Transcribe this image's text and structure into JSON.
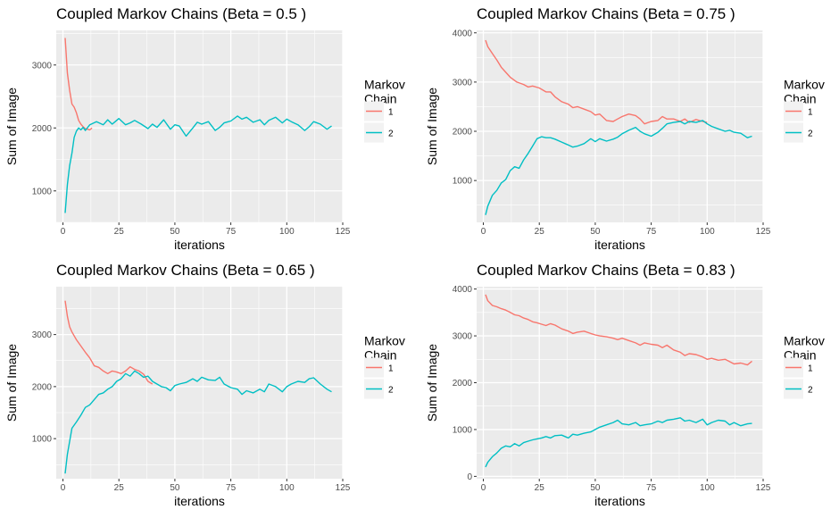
{
  "colors": {
    "series_1": "#F8766D",
    "series_2": "#00BFC4",
    "panel_bg": "#EBEBEB",
    "grid": "#FFFFFF"
  },
  "chart_data": [
    {
      "type": "line",
      "title": "Coupled Markov Chains (Beta = 0.5 )",
      "xlabel": "iterations",
      "ylabel": "Sum of Image",
      "xlim": [
        -3,
        125
      ],
      "ylim": [
        500,
        3550
      ],
      "xticks": [
        0,
        25,
        50,
        75,
        100,
        125
      ],
      "yticks": [
        1000,
        2000,
        3000
      ],
      "grid": true,
      "legend": {
        "title": [
          "Markov",
          "Chain"
        ],
        "placement": "right",
        "entries": [
          "1",
          "2"
        ]
      },
      "series": [
        {
          "name": "1",
          "x": [
            1,
            2,
            3,
            4,
            5,
            6,
            7,
            8,
            9,
            10,
            11,
            12,
            13
          ],
          "y": [
            3430,
            2870,
            2600,
            2380,
            2330,
            2240,
            2120,
            2060,
            2020,
            1990,
            1980,
            1970,
            2000
          ]
        },
        {
          "name": "2",
          "x": [
            1,
            2,
            3,
            4,
            5,
            6,
            7,
            8,
            9,
            10,
            12,
            15,
            18,
            20,
            22,
            25,
            28,
            30,
            32,
            35,
            38,
            40,
            42,
            45,
            48,
            50,
            52,
            55,
            58,
            60,
            62,
            65,
            68,
            70,
            72,
            75,
            78,
            80,
            82,
            85,
            88,
            90,
            92,
            95,
            98,
            100,
            102,
            105,
            108,
            110,
            112,
            115,
            118,
            120
          ],
          "y": [
            650,
            1100,
            1400,
            1600,
            1850,
            1950,
            2000,
            1970,
            2010,
            1960,
            2050,
            2100,
            2050,
            2130,
            2060,
            2150,
            2050,
            2080,
            2120,
            2060,
            1990,
            2060,
            2010,
            2130,
            1980,
            2050,
            2030,
            1870,
            2000,
            2090,
            2060,
            2100,
            1960,
            2010,
            2080,
            2110,
            2190,
            2140,
            2170,
            2090,
            2130,
            2050,
            2120,
            2170,
            2080,
            2140,
            2100,
            2050,
            1960,
            2020,
            2100,
            2060,
            1980,
            2030
          ]
        }
      ]
    },
    {
      "type": "line",
      "title": "Coupled Markov Chains (Beta = 0.75 )",
      "xlabel": "iterations",
      "ylabel": "Sum of Image",
      "xlim": [
        -3,
        125
      ],
      "ylim": [
        150,
        4050
      ],
      "xticks": [
        0,
        25,
        50,
        75,
        100,
        125
      ],
      "yticks": [
        1000,
        2000,
        3000,
        4000
      ],
      "grid": true,
      "legend": {
        "title": [
          "Markov",
          "Chain"
        ],
        "placement": "right",
        "entries": [
          "1",
          "2"
        ]
      },
      "series": [
        {
          "name": "1",
          "x": [
            1,
            2,
            4,
            6,
            8,
            10,
            12,
            15,
            18,
            20,
            22,
            25,
            28,
            30,
            32,
            35,
            38,
            40,
            42,
            45,
            48,
            50,
            52,
            55,
            58,
            60,
            62,
            65,
            68,
            70,
            72,
            75,
            78,
            80,
            82,
            85,
            88,
            90,
            92,
            95,
            98,
            100
          ],
          "y": [
            3850,
            3720,
            3580,
            3450,
            3300,
            3200,
            3100,
            3000,
            2950,
            2900,
            2920,
            2880,
            2800,
            2800,
            2700,
            2600,
            2550,
            2480,
            2500,
            2450,
            2400,
            2330,
            2350,
            2220,
            2200,
            2250,
            2300,
            2350,
            2320,
            2250,
            2150,
            2200,
            2220,
            2300,
            2250,
            2250,
            2200,
            2250,
            2180,
            2240,
            2200,
            2180
          ]
        },
        {
          "name": "2",
          "x": [
            1,
            2,
            4,
            6,
            8,
            10,
            12,
            14,
            16,
            18,
            20,
            22,
            24,
            26,
            28,
            30,
            32,
            35,
            38,
            40,
            42,
            45,
            48,
            50,
            52,
            55,
            58,
            60,
            62,
            65,
            68,
            70,
            72,
            75,
            78,
            80,
            82,
            85,
            88,
            90,
            92,
            95,
            98,
            100,
            102,
            105,
            108,
            110,
            112,
            115,
            118,
            120
          ],
          "y": [
            300,
            480,
            700,
            800,
            950,
            1020,
            1200,
            1280,
            1250,
            1420,
            1550,
            1700,
            1850,
            1890,
            1870,
            1870,
            1840,
            1780,
            1720,
            1680,
            1700,
            1750,
            1850,
            1790,
            1850,
            1800,
            1840,
            1880,
            1950,
            2020,
            2080,
            2000,
            1950,
            1900,
            1980,
            2060,
            2150,
            2180,
            2200,
            2150,
            2200,
            2180,
            2220,
            2150,
            2100,
            2050,
            2000,
            2020,
            1980,
            1960,
            1870,
            1900
          ]
        }
      ]
    },
    {
      "type": "line",
      "title": "Coupled Markov Chains (Beta = 0.65 )",
      "xlabel": "iterations",
      "ylabel": "Sum of Image",
      "xlim": [
        -3,
        125
      ],
      "ylim": [
        230,
        3920
      ],
      "xticks": [
        0,
        25,
        50,
        75,
        100,
        125
      ],
      "yticks": [
        1000,
        2000,
        3000
      ],
      "grid": true,
      "legend": {
        "title": [
          "Markov",
          "Chain"
        ],
        "placement": "right",
        "entries": [
          "1",
          "2"
        ]
      },
      "series": [
        {
          "name": "1",
          "x": [
            1,
            2,
            3,
            4,
            6,
            8,
            10,
            12,
            14,
            16,
            18,
            20,
            22,
            24,
            26,
            28,
            30,
            32,
            34,
            36,
            38,
            40
          ],
          "y": [
            3650,
            3350,
            3150,
            3050,
            2900,
            2780,
            2660,
            2550,
            2400,
            2370,
            2300,
            2250,
            2300,
            2280,
            2250,
            2300,
            2380,
            2330,
            2300,
            2240,
            2100,
            2050
          ]
        },
        {
          "name": "2",
          "x": [
            1,
            2,
            4,
            6,
            8,
            10,
            12,
            14,
            16,
            18,
            20,
            22,
            24,
            26,
            28,
            30,
            32,
            34,
            36,
            38,
            40,
            42,
            44,
            46,
            48,
            50,
            52,
            55,
            58,
            60,
            62,
            65,
            68,
            70,
            72,
            75,
            78,
            80,
            82,
            85,
            88,
            90,
            92,
            95,
            98,
            100,
            102,
            105,
            108,
            110,
            112,
            115,
            118,
            120
          ],
          "y": [
            330,
            700,
            1200,
            1320,
            1450,
            1600,
            1650,
            1750,
            1850,
            1880,
            1950,
            2000,
            2100,
            2150,
            2250,
            2200,
            2300,
            2250,
            2180,
            2200,
            2100,
            2050,
            2000,
            1980,
            1920,
            2020,
            2050,
            2080,
            2150,
            2100,
            2180,
            2130,
            2120,
            2180,
            2050,
            1980,
            1950,
            1850,
            1920,
            1880,
            1950,
            1900,
            2050,
            2000,
            1900,
            2000,
            2050,
            2100,
            2080,
            2150,
            2170,
            2050,
            1950,
            1900
          ]
        }
      ]
    },
    {
      "type": "line",
      "title": "Coupled Markov Chains (Beta = 0.83 )",
      "xlabel": "iterations",
      "ylabel": "Sum of Image",
      "xlim": [
        -3,
        125
      ],
      "ylim": [
        -50,
        4050
      ],
      "xticks": [
        0,
        25,
        50,
        75,
        100,
        125
      ],
      "yticks": [
        0,
        1000,
        2000,
        3000,
        4000
      ],
      "grid": true,
      "legend": {
        "title": [
          "Markov",
          "Chain"
        ],
        "placement": "right",
        "entries": [
          "1",
          "2"
        ]
      },
      "series": [
        {
          "name": "1",
          "x": [
            1,
            2,
            4,
            6,
            8,
            10,
            12,
            14,
            16,
            18,
            20,
            22,
            24,
            26,
            28,
            30,
            32,
            35,
            38,
            40,
            42,
            45,
            48,
            50,
            52,
            55,
            58,
            60,
            62,
            65,
            68,
            70,
            72,
            75,
            78,
            80,
            82,
            85,
            88,
            90,
            92,
            95,
            98,
            100,
            102,
            105,
            108,
            110,
            112,
            115,
            118,
            120
          ],
          "y": [
            3880,
            3750,
            3650,
            3620,
            3580,
            3550,
            3500,
            3450,
            3430,
            3380,
            3350,
            3300,
            3280,
            3250,
            3220,
            3260,
            3230,
            3150,
            3100,
            3050,
            3080,
            3100,
            3050,
            3020,
            3000,
            2980,
            2950,
            2920,
            2950,
            2900,
            2850,
            2800,
            2850,
            2820,
            2800,
            2750,
            2800,
            2700,
            2650,
            2580,
            2620,
            2600,
            2550,
            2500,
            2520,
            2480,
            2500,
            2450,
            2400,
            2420,
            2380,
            2460
          ]
        },
        {
          "name": "2",
          "x": [
            1,
            2,
            4,
            6,
            8,
            10,
            12,
            14,
            16,
            18,
            20,
            22,
            24,
            26,
            28,
            30,
            32,
            35,
            38,
            40,
            42,
            45,
            48,
            50,
            52,
            55,
            58,
            60,
            62,
            65,
            68,
            70,
            72,
            75,
            78,
            80,
            82,
            85,
            88,
            90,
            92,
            95,
            98,
            100,
            102,
            105,
            108,
            110,
            112,
            115,
            118,
            120
          ],
          "y": [
            200,
            300,
            420,
            500,
            600,
            650,
            630,
            700,
            650,
            720,
            750,
            780,
            800,
            820,
            850,
            820,
            870,
            880,
            820,
            900,
            880,
            920,
            950,
            1000,
            1050,
            1100,
            1150,
            1200,
            1120,
            1100,
            1150,
            1080,
            1100,
            1120,
            1180,
            1150,
            1200,
            1220,
            1250,
            1180,
            1200,
            1150,
            1220,
            1100,
            1150,
            1200,
            1180,
            1100,
            1150,
            1080,
            1120,
            1130
          ]
        }
      ]
    }
  ]
}
